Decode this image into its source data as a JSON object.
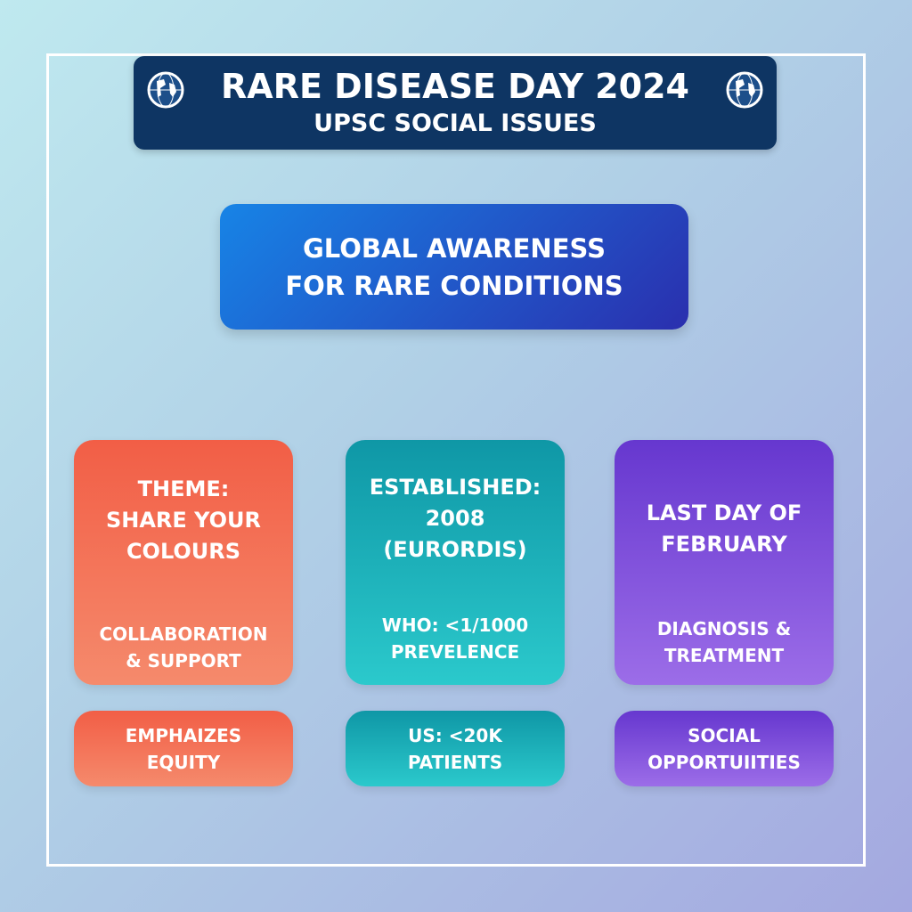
{
  "header": {
    "title": "RARE DISEASE DAY 2024",
    "subtitle": "UPSC SOCIAL ISSUES",
    "icon": "globe-icon"
  },
  "banner": {
    "line1": "GLOBAL AWARENESS",
    "line2": "FOR RARE CONDITIONS"
  },
  "cards": [
    {
      "title": [
        "THEME:",
        "SHARE YOUR",
        "COLOURS"
      ],
      "sub": [
        "COLLABORATION",
        "& SUPPORT"
      ],
      "foot": [
        "EMPHAIZES",
        "EQUITY"
      ],
      "color": "#f25e46"
    },
    {
      "title": [
        "ESTABLISHED:",
        "2008",
        "(EURORDIS)"
      ],
      "sub": [
        "WHO: <1/1000",
        "PREVELENCE"
      ],
      "foot": [
        "US: <20K",
        "PATIENTS"
      ],
      "color": "#1aa9b4"
    },
    {
      "title": [
        "LAST DAY OF",
        "FEBRUARY"
      ],
      "sub": [
        "DIAGNOSIS &",
        "TREATMENT"
      ],
      "foot": [
        "SOCIAL",
        "OPPORTUIITIES"
      ],
      "color": "#7a4ad8"
    }
  ]
}
